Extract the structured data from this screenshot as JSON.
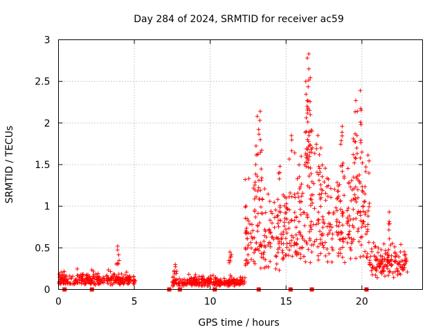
{
  "chart_data": {
    "type": "scatter",
    "title": "Day 284 of 2024, SRMTID for receiver ac59",
    "xlabel": "GPS time / hours",
    "ylabel": "SRMTID / TECUs",
    "xlim": [
      0,
      24
    ],
    "ylim": [
      0,
      3
    ],
    "x_ticks": [
      0,
      5,
      10,
      15,
      20
    ],
    "y_ticks": [
      0,
      0.5,
      1,
      1.5,
      2,
      2.5,
      3
    ],
    "grid": true,
    "marker": "+",
    "color": "#ff0000",
    "segments": [
      {
        "x_start": 0.0,
        "x_end": 5.1,
        "base": 0.13,
        "spread": 0.12
      },
      {
        "x_start": 7.5,
        "x_end": 12.3,
        "base": 0.09,
        "spread": 0.1
      },
      {
        "x_start": 12.3,
        "x_end": 15.2,
        "base": 0.55,
        "spread": 0.9
      },
      {
        "x_start": 15.2,
        "x_end": 19.3,
        "base": 0.75,
        "spread": 1.2
      },
      {
        "x_start": 19.3,
        "x_end": 20.5,
        "base": 0.9,
        "spread": 1.1
      },
      {
        "x_start": 20.5,
        "x_end": 23.0,
        "base": 0.35,
        "spread": 0.35
      }
    ],
    "peaks": [
      {
        "x": 3.9,
        "y": 0.52
      },
      {
        "x": 7.7,
        "y": 0.3
      },
      {
        "x": 11.3,
        "y": 0.45
      },
      {
        "x": 13.0,
        "y": 1.5
      },
      {
        "x": 13.1,
        "y": 2.08
      },
      {
        "x": 13.3,
        "y": 2.14
      },
      {
        "x": 13.3,
        "y": 1.8
      },
      {
        "x": 14.6,
        "y": 1.48
      },
      {
        "x": 15.0,
        "y": 1.1
      },
      {
        "x": 16.0,
        "y": 1.6
      },
      {
        "x": 16.5,
        "y": 2.83
      },
      {
        "x": 16.4,
        "y": 2.78
      },
      {
        "x": 16.5,
        "y": 2.65
      },
      {
        "x": 16.3,
        "y": 2.5
      },
      {
        "x": 16.4,
        "y": 2.27
      },
      {
        "x": 16.6,
        "y": 2.1
      },
      {
        "x": 16.7,
        "y": 1.9
      },
      {
        "x": 17.1,
        "y": 1.85
      },
      {
        "x": 17.3,
        "y": 1.7
      },
      {
        "x": 18.4,
        "y": 1.18
      },
      {
        "x": 18.7,
        "y": 1.96
      },
      {
        "x": 19.6,
        "y": 2.27
      },
      {
        "x": 19.9,
        "y": 2.39
      },
      {
        "x": 19.7,
        "y": 2.14
      },
      {
        "x": 20.0,
        "y": 1.65
      },
      {
        "x": 19.5,
        "y": 1.78
      },
      {
        "x": 21.8,
        "y": 0.93
      }
    ],
    "markers_at_zero": [
      0.4,
      2.2,
      7.3,
      8.0,
      10.3,
      13.2,
      15.3,
      16.7,
      20.3
    ]
  }
}
